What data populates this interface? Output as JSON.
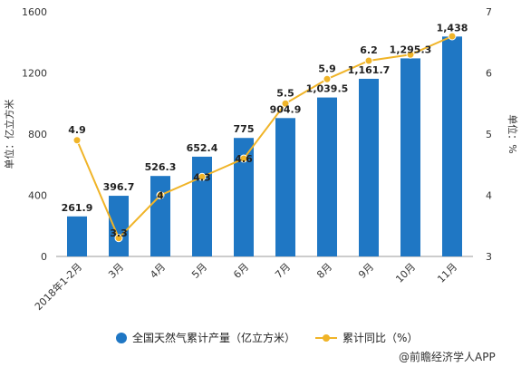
{
  "colors": {
    "bar": "#1f77c4",
    "line": "#f0b428",
    "grid": "#d9d9d9"
  },
  "chart_data": {
    "type": "bar",
    "categories": [
      "2018年1-2月",
      "3月",
      "4月",
      "5月",
      "6月",
      "7月",
      "8月",
      "9月",
      "10月",
      "11月"
    ],
    "series": [
      {
        "name": "全国天然气累计产量（亿立方米）",
        "type": "bar",
        "axis": "left",
        "values": [
          261.9,
          396.7,
          526.3,
          652.4,
          775,
          904.9,
          1039.5,
          1161.7,
          1295.3,
          1438
        ],
        "labels": [
          "261.9",
          "396.7",
          "526.3",
          "652.4",
          "775",
          "904.9",
          "1,039.5",
          "1,161.7",
          "1,295.3",
          "1,438"
        ]
      },
      {
        "name": "累计同比（%）",
        "type": "line",
        "axis": "right",
        "values": [
          4.9,
          3.3,
          4,
          4.3,
          4.6,
          5.5,
          5.9,
          6.2,
          6.3,
          6.6
        ],
        "labels": [
          "4.9",
          "3.3",
          "4",
          "4.3",
          "4.6",
          "5.5",
          "5.9",
          "6.2",
          "",
          ""
        ]
      }
    ],
    "ylabel": "单位：亿立方米",
    "y2label": "单位：%",
    "ylim": [
      0,
      1600
    ],
    "yticks": [
      0,
      400,
      800,
      1200,
      1600
    ],
    "y2lim": [
      3,
      7
    ],
    "y2ticks": [
      3,
      4,
      5,
      6,
      7
    ],
    "grid": false,
    "legend_position": "bottom"
  },
  "source": "@前瞻经济学人APP"
}
